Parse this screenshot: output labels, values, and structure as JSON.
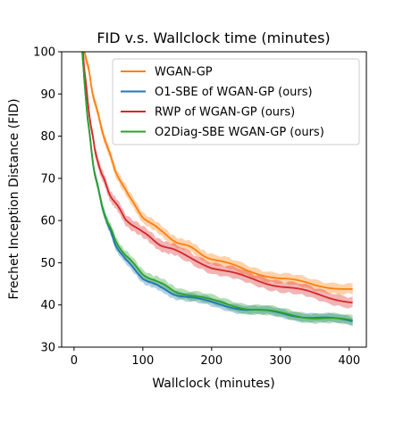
{
  "chart_data": {
    "type": "line",
    "title": "FID v.s. Wallclock time (minutes)",
    "xlabel": "Wallclock (minutes)",
    "ylabel": "Frechet Inception Distance (FID)",
    "xlim": [
      -18,
      425
    ],
    "ylim": [
      30,
      100
    ],
    "xticks": [
      0,
      100,
      200,
      300,
      400
    ],
    "yticks": [
      30,
      40,
      50,
      60,
      70,
      80,
      90,
      100
    ],
    "grid": false,
    "legend_position": "top-right",
    "series": [
      {
        "name": "WGAN-GP",
        "color": "#ff7f0e",
        "x": [
          15,
          20,
          25,
          30,
          40,
          50,
          60,
          80,
          100,
          125,
          150,
          175,
          200,
          250,
          300,
          350,
          405
        ],
        "y": [
          100,
          97,
          92,
          88,
          82,
          76.5,
          72,
          65.5,
          61,
          57.5,
          55,
          53,
          51,
          48.2,
          46.3,
          44.8,
          43.6
        ],
        "band": 1.2
      },
      {
        "name": "O1-SBE of WGAN-GP (ours)",
        "color": "#1f77b4",
        "x": [
          12,
          15,
          20,
          25,
          30,
          40,
          50,
          60,
          75,
          100,
          125,
          150,
          200,
          250,
          300,
          350,
          405
        ],
        "y": [
          100,
          93,
          84,
          77,
          71,
          64,
          58.5,
          54.5,
          50.5,
          46.5,
          44,
          42.5,
          40.5,
          39,
          38,
          37,
          36.2
        ],
        "band": 1.0
      },
      {
        "name": "RWP of WGAN-GP (ours)",
        "color": "#d62728",
        "x": [
          13,
          15,
          20,
          25,
          30,
          40,
          50,
          60,
          75,
          100,
          125,
          150,
          200,
          250,
          300,
          350,
          405
        ],
        "y": [
          100,
          96,
          88,
          82,
          77,
          71,
          67,
          64,
          60.5,
          57,
          54.5,
          52.5,
          49,
          46.5,
          44.5,
          42.7,
          40.6
        ],
        "band": 1.3
      },
      {
        "name": "O2Diag-SBE WGAN-GP (ours)",
        "color": "#2ca02c",
        "x": [
          12,
          15,
          20,
          25,
          30,
          40,
          50,
          60,
          75,
          100,
          125,
          150,
          200,
          250,
          300,
          350,
          405
        ],
        "y": [
          100,
          93,
          84,
          77,
          71,
          64,
          59,
          55.5,
          51.5,
          47.5,
          45,
          43.2,
          41,
          39.3,
          38,
          37,
          36.2
        ],
        "band": 1.1
      }
    ]
  }
}
